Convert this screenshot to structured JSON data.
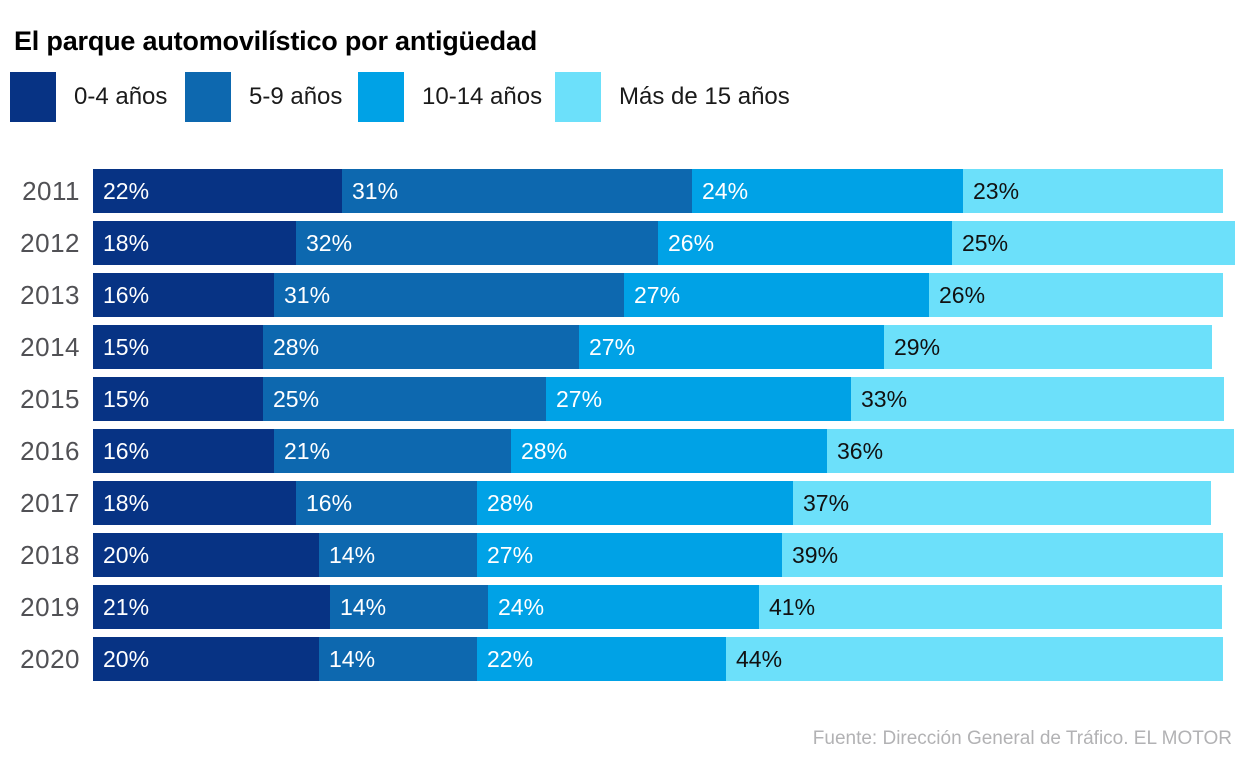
{
  "title": "El parque automovilístico por antigüedad",
  "source": "Fuente: Dirección General de Tráfico. EL MOTOR",
  "colors": {
    "age_0_4": "#073384",
    "age_5_9": "#0d68af",
    "age_10_14": "#00a2e6",
    "age_15_plus": "#6ce0fa",
    "year_label": "#515155",
    "source_text": "#b2b2b4",
    "label_on_dark": "#ffffff",
    "label_on_light": "#111111"
  },
  "chart_data": {
    "type": "bar",
    "stacked": true,
    "orientation": "horizontal",
    "value_suffix": "%",
    "xlim": [
      0,
      101
    ],
    "grid": false,
    "legend_position": "top",
    "categories": [
      "2011",
      "2012",
      "2013",
      "2014",
      "2015",
      "2016",
      "2017",
      "2018",
      "2019",
      "2020"
    ],
    "series": [
      {
        "name": "0-4 años",
        "color": "#073384",
        "label_color": "#ffffff",
        "values": [
          22,
          18,
          16,
          15,
          15,
          16,
          18,
          20,
          21,
          20
        ]
      },
      {
        "name": "5-9 años",
        "color": "#0d68af",
        "label_color": "#ffffff",
        "values": [
          31,
          32,
          31,
          28,
          25,
          21,
          16,
          14,
          14,
          14
        ]
      },
      {
        "name": "10-14 años",
        "color": "#00a2e6",
        "label_color": "#ffffff",
        "values": [
          24,
          26,
          27,
          27,
          27,
          28,
          28,
          27,
          24,
          22
        ]
      },
      {
        "name": "Más de 15 años",
        "color": "#6ce0fa",
        "label_color": "#111111",
        "values": [
          23,
          25,
          26,
          29,
          33,
          36,
          37,
          39,
          41,
          44
        ]
      }
    ]
  }
}
